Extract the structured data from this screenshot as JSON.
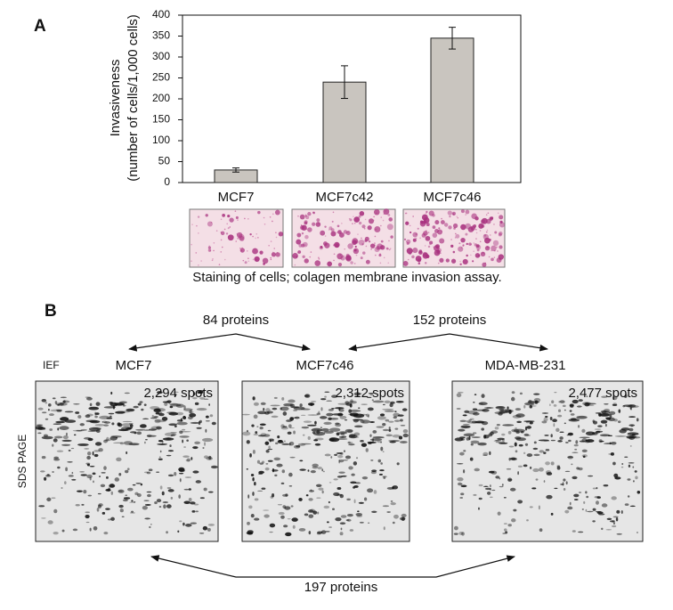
{
  "chart_data": {
    "type": "bar",
    "panel_label": "A",
    "y_label": [
      "Invasiveness",
      "(number of cells/1,000 cells)"
    ],
    "categories": [
      "MCF7",
      "MCF7c42",
      "MCF7c46"
    ],
    "values": [
      30,
      240,
      345
    ],
    "errors": [
      5,
      39,
      26
    ],
    "color": "#c9c5bf",
    "ylim": [
      0,
      400
    ],
    "yticks": [
      0,
      50,
      100,
      150,
      200,
      250,
      300,
      350,
      400
    ]
  },
  "staining_caption": "Staining of cells; colagen membrane invasion assay.",
  "panel_b": {
    "label": "B",
    "ief_label": "IEF",
    "sds_label": "SDS PAGE",
    "gels": [
      {
        "name": "MCF7",
        "spots": "2,294 spots"
      },
      {
        "name": "MCF7c46",
        "spots": "2,312 spots"
      },
      {
        "name": "MDA-MB-231",
        "spots": "2,477 spots"
      }
    ],
    "comparisons": [
      "84 proteins",
      "152 proteins",
      "197 proteins"
    ]
  }
}
